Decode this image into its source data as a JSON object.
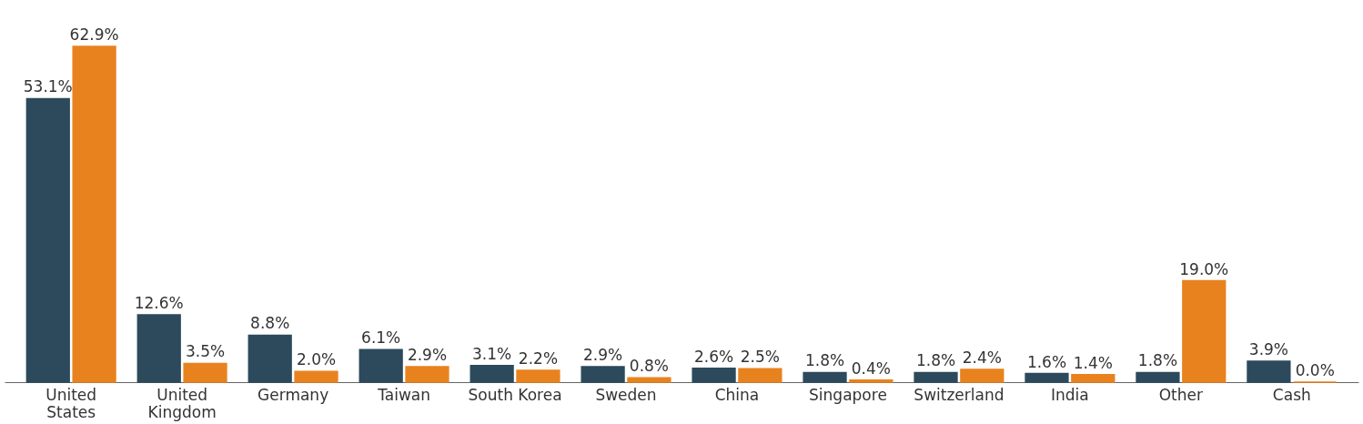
{
  "chart_data": {
    "type": "bar",
    "categories": [
      "United States",
      "United Kingdom",
      "Germany",
      "Taiwan",
      "South Korea",
      "Sweden",
      "China",
      "Singapore",
      "Switzerland",
      "India",
      "Other",
      "Cash"
    ],
    "series": [
      {
        "color": "#2c4a5c",
        "values": [
          53.1,
          12.6,
          8.8,
          6.1,
          3.1,
          2.9,
          2.6,
          1.8,
          1.8,
          1.6,
          1.8,
          3.9
        ],
        "value_labels": [
          "53.1%",
          "12.6%",
          "8.8%",
          "6.1%",
          "3.1%",
          "2.9%",
          "2.6%",
          "1.8%",
          "1.8%",
          "1.6%",
          "1.8%",
          "3.9%"
        ]
      },
      {
        "color": "#e8821e",
        "values": [
          62.9,
          3.5,
          2.0,
          2.9,
          2.2,
          0.8,
          2.5,
          0.4,
          2.4,
          1.4,
          19.0,
          0.0
        ],
        "value_labels": [
          "62.9%",
          "3.5%",
          "2.0%",
          "2.9%",
          "2.2%",
          "0.8%",
          "2.5%",
          "0.4%",
          "2.4%",
          "1.4%",
          "19.0%",
          "0.0%"
        ]
      }
    ],
    "grid": false
  }
}
